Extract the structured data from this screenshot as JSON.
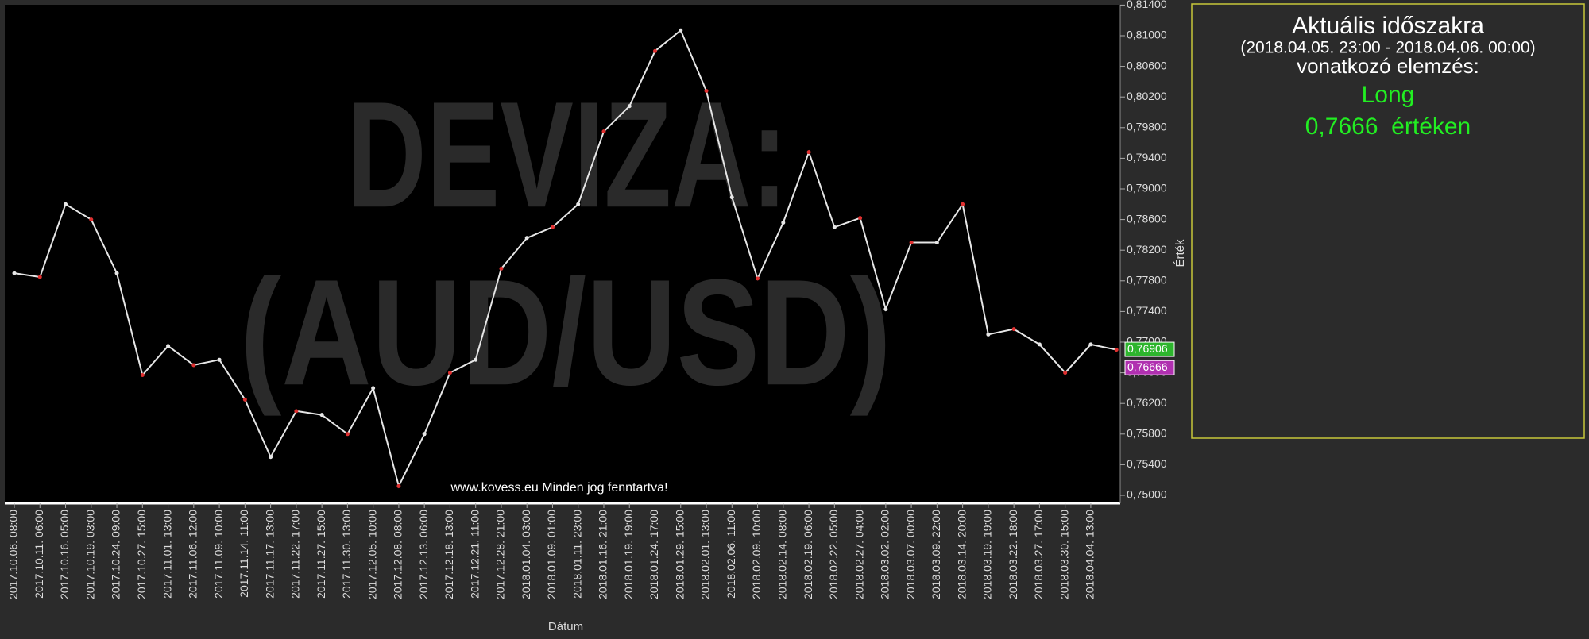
{
  "chart_data": {
    "type": "line",
    "watermark": [
      "DEVIZA:",
      "(AUD/USD)"
    ],
    "footer": "www.kovess.eu Minden jog fenntartva!",
    "x_label": "Dátum",
    "y_label": "Érték",
    "categories": [
      "2017.10.06. 08:00",
      "2017.10.11. 06:00",
      "2017.10.16. 05:00",
      "2017.10.19. 03:00",
      "2017.10.24. 09:00",
      "2017.10.27. 15:00",
      "2017.11.01. 13:00",
      "2017.11.06. 12:00",
      "2017.11.09. 10:00",
      "2017.11.14. 11:00",
      "2017.11.17. 13:00",
      "2017.11.22. 17:00",
      "2017.11.27. 15:00",
      "2017.11.30. 13:00",
      "2017.12.05. 10:00",
      "2017.12.08. 08:00",
      "2017.12.13. 06:00",
      "2017.12.18. 13:00",
      "2017.12.21. 11:00",
      "2017.12.28. 21:00",
      "2018.01.04. 03:00",
      "2018.01.09. 01:00",
      "2018.01.11. 23:00",
      "2018.01.16. 21:00",
      "2018.01.19. 19:00",
      "2018.01.24. 17:00",
      "2018.01.29. 15:00",
      "2018.02.01. 13:00",
      "2018.02.06. 11:00",
      "2018.02.09. 10:00",
      "2018.02.14. 08:00",
      "2018.02.19. 06:00",
      "2018.02.22. 05:00",
      "2018.02.27. 04:00",
      "2018.03.02. 02:00",
      "2018.03.07. 00:00",
      "2018.03.09. 22:00",
      "2018.03.14. 20:00",
      "2018.03.19. 19:00",
      "2018.03.22. 18:00",
      "2018.03.27. 17:00",
      "2018.03.30. 15:00",
      "2018.04.04. 13:00",
      null
    ],
    "values": [
      0.779,
      0.7785,
      0.788,
      0.786,
      0.779,
      0.7657,
      0.7695,
      0.767,
      0.7677,
      0.7625,
      0.755,
      0.761,
      0.7605,
      0.758,
      0.764,
      0.7512,
      0.758,
      0.766,
      0.7677,
      0.7796,
      0.7836,
      0.785,
      0.788,
      0.7975,
      0.8008,
      0.808,
      0.8107,
      0.8028,
      0.7889,
      0.7783,
      0.7856,
      0.7948,
      0.785,
      0.7862,
      0.7743,
      0.783,
      0.783,
      0.788,
      0.771,
      0.7717,
      0.7697,
      0.766,
      0.7697,
      0.769
    ],
    "color": "#e6e6e6",
    "ylim": [
      0.75,
      0.814
    ],
    "yticks": [
      {
        "value": 0.75,
        "label": "0,75000"
      },
      {
        "value": 0.754,
        "label": "0,75400"
      },
      {
        "value": 0.758,
        "label": "0,75800"
      },
      {
        "value": 0.762,
        "label": "0,76200"
      },
      {
        "value": 0.766,
        "label": "0,76600"
      },
      {
        "value": 0.77,
        "label": "0,77000"
      },
      {
        "value": 0.774,
        "label": "0,77400"
      },
      {
        "value": 0.778,
        "label": "0,77800"
      },
      {
        "value": 0.782,
        "label": "0,78200"
      },
      {
        "value": 0.786,
        "label": "0,78600"
      },
      {
        "value": 0.79,
        "label": "0,79000"
      },
      {
        "value": 0.794,
        "label": "0,79400"
      },
      {
        "value": 0.798,
        "label": "0,79800"
      },
      {
        "value": 0.802,
        "label": "0,80200"
      },
      {
        "value": 0.806,
        "label": "0,80600"
      },
      {
        "value": 0.81,
        "label": "0,81000"
      },
      {
        "value": 0.814,
        "label": "0,81400"
      }
    ],
    "markers": [
      {
        "value": 0.76906,
        "label": "0,76906",
        "color": "#2db52d"
      },
      {
        "value": 0.76666,
        "label": "0,76666",
        "color": "#b030b0"
      }
    ],
    "grid": false
  },
  "panel": {
    "title": "Aktuális időszakra",
    "period": "(2018.04.05. 23:00 - 2018.04.06. 00:00)",
    "subtitle": "vonatkozó elemzés:",
    "signal": "Long",
    "level": "0,7666  értéken"
  }
}
